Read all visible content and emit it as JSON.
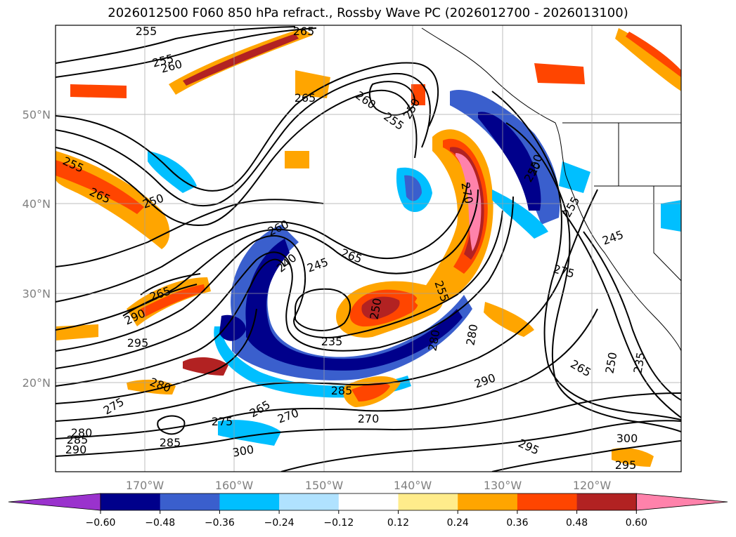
{
  "title": "2026012500 F060 850 hPa refract., Rossby Wave PC (2026012700 - 2026013100)",
  "lat_labels": [
    "50°N",
    "40°N",
    "30°N",
    "20°N"
  ],
  "lon_labels": [
    "170°W",
    "160°W",
    "150°W",
    "140°W",
    "130°W",
    "120°W"
  ],
  "colorbar": {
    "ticks": [
      "−0.60",
      "−0.48",
      "−0.36",
      "−0.24",
      "−0.12",
      "0.12",
      "0.24",
      "0.36",
      "0.48",
      "0.60"
    ],
    "colors": [
      "#9a32cd",
      "#00008b",
      "#3a5fcd",
      "#00bfff",
      "#b0e2ff",
      "#ffffff",
      "#ffec8b",
      "#ffa500",
      "#ff4500",
      "#b22222",
      "#ff82ab"
    ]
  },
  "contour_labels": [
    "255",
    "265",
    "255",
    "260",
    "250",
    "265",
    "260",
    "255",
    "250",
    "255",
    "265",
    "250",
    "260",
    "240",
    "245",
    "265",
    "270",
    "250",
    "255",
    "245",
    "275",
    "265",
    "290",
    "235",
    "250",
    "255",
    "280",
    "280",
    "295",
    "265",
    "250",
    "235",
    "290",
    "285",
    "280",
    "275",
    "265",
    "270",
    "270",
    "275",
    "285",
    "300",
    "295",
    "300",
    "295",
    "280",
    "285",
    "290"
  ]
}
